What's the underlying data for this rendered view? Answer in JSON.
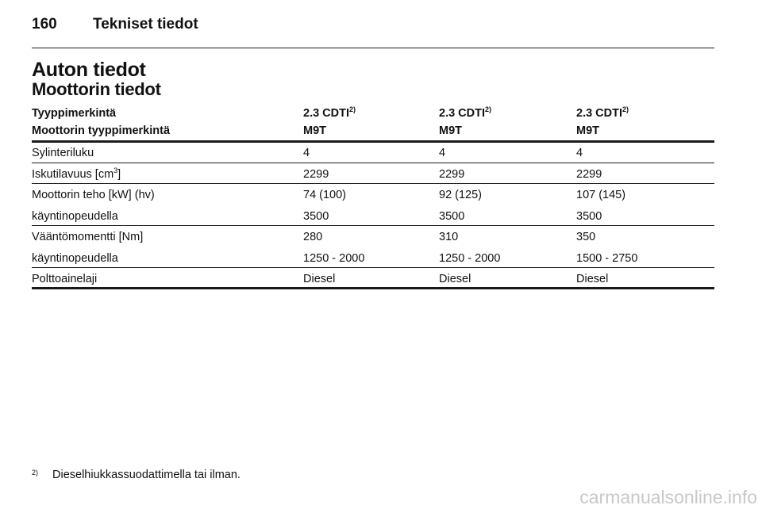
{
  "header": {
    "page_number": "160",
    "section": "Tekniset tiedot"
  },
  "title": "Auton tiedot",
  "subtitle": "Moottorin tiedot",
  "table": {
    "header_rows": [
      [
        "Tyyppimerkintä",
        {
          "text": "2.3 CDTI",
          "sup": "2)"
        },
        {
          "text": "2.3 CDTI",
          "sup": "2)"
        },
        {
          "text": "2.3 CDTI",
          "sup": "2)"
        }
      ],
      [
        "Moottorin tyyppimerkintä",
        "M9T",
        "M9T",
        "M9T"
      ]
    ],
    "groups": [
      [
        [
          "Sylinteriluku",
          "4",
          "4",
          "4"
        ]
      ],
      [
        [
          {
            "text": "Iskutilavuus [cm",
            "sup": "3",
            "after": "]"
          },
          "2299",
          "2299",
          "2299"
        ]
      ],
      [
        [
          "Moottorin teho [kW] (hv)",
          "74 (100)",
          "92 (125)",
          "107 (145)"
        ],
        [
          "käyntinopeudella",
          "3500",
          "3500",
          "3500"
        ]
      ],
      [
        [
          "Vääntömomentti [Nm]",
          "280",
          "310",
          "350"
        ],
        [
          "käyntinopeudella",
          "1250 - 2000",
          "1250 - 2000",
          "1500 - 2750"
        ]
      ],
      [
        [
          "Polttoainelaji",
          "Diesel",
          "Diesel",
          "Diesel"
        ]
      ]
    ]
  },
  "footnote": {
    "marker": "2)",
    "text": "Dieselhiukkassuodattimella tai ilman."
  },
  "watermark": "carmanualsonline.info"
}
